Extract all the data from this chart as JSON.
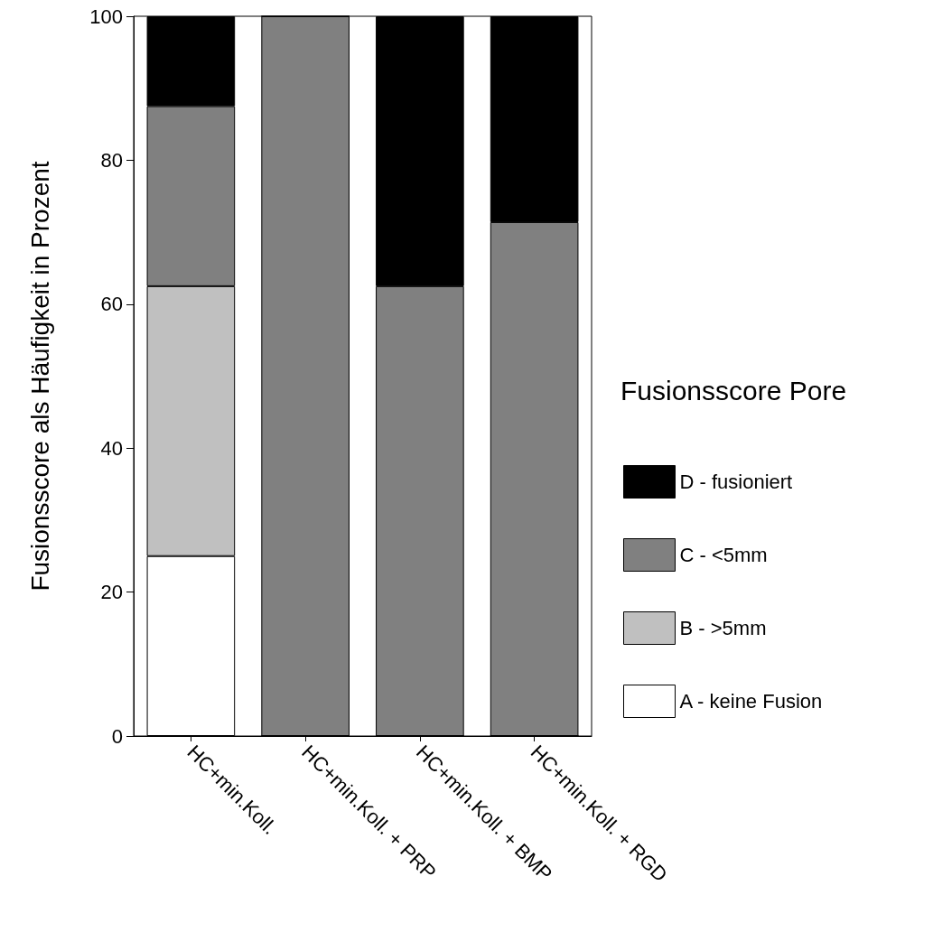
{
  "chart_data": {
    "type": "bar",
    "stacked": true,
    "ylabel": "Fusionsscore als Häufigkeit in Prozent",
    "legend_title": "Fusionsscore Pore",
    "categories": [
      "HC+min.Koll.",
      "HC+min.Koll. + PRP",
      "HC+min.Koll. + BMP",
      "HC+min.Koll. + RGD"
    ],
    "series": [
      {
        "name": "A - keine Fusion",
        "color": "#ffffff",
        "values": [
          25,
          0,
          0,
          0
        ]
      },
      {
        "name": "B - >5mm",
        "color": "#c0c0c0",
        "values": [
          37.5,
          0,
          0,
          0
        ]
      },
      {
        "name": "C - <5mm",
        "color": "#808080",
        "values": [
          25,
          100,
          62.5,
          71.4
        ]
      },
      {
        "name": "D - fusioniert",
        "color": "#000000",
        "values": [
          12.5,
          0,
          37.5,
          28.6
        ]
      }
    ],
    "ylim": [
      0,
      100
    ],
    "yticks": [
      0,
      20,
      40,
      60,
      80,
      100
    ],
    "grid": false,
    "legend": "right"
  }
}
